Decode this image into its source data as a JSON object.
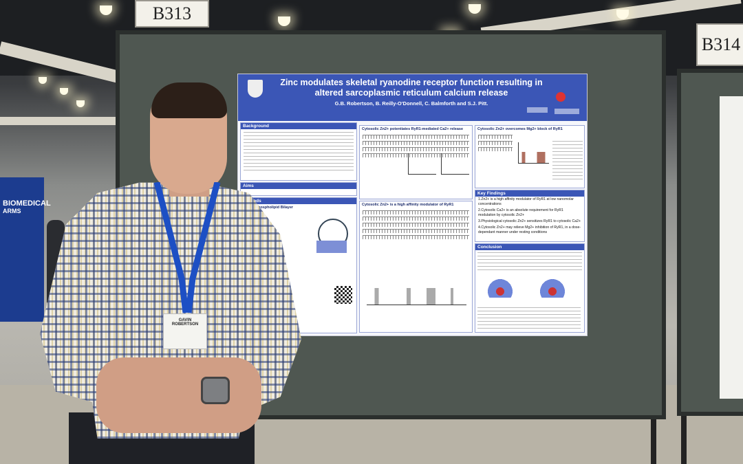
{
  "booth_signs": {
    "main": "B313",
    "right": "B314"
  },
  "banner": {
    "line1": "BIOMEDICAL",
    "line2": "ARMS"
  },
  "poster": {
    "title": "Zinc modulates skeletal ryanodine receptor function resulting in altered sarcoplasmic reticulum calcium release",
    "authors": "G.B. Robertson, B. Reilly-O'Donnell, C. Balmforth and S.J. Pitt.",
    "sections": {
      "background": "Background",
      "aims": "Aims",
      "methods": "Methods",
      "bilayer": "Planar Phospholipid Bilayer",
      "panel1_title": "Cytosolic Zn2+ potentiates RyR1-mediated Ca2+ release",
      "panel2_title": "Cytosolic Zn2+ overcomes Mg2+ block of RyR1",
      "panel3_title": "Cytosolic Zn2+ is a high affinity modulator of RyR1",
      "key_findings": "Key Findings",
      "conclusion": "Conclusion"
    },
    "key_findings": [
      "1.Zn2+ is a high affinity modulator of RyR1 at low nanomolar concentrations",
      "2.Cytosolic Ca2+ is an absolute requirement for RyR1 modulation by cytosolic Zn2+",
      "3.Physiological cytosolic Zn2+ sensitizes RyR1 to cytosolic Ca2+",
      "4.Cytosolic Zn2+ may relieve Mg2+ inhibition of RyR1, in a dose-dependant manner under resting conditions"
    ]
  },
  "badge": {
    "first": "GAVIN",
    "last": "ROBERTSON"
  },
  "colors": {
    "poster_blue": "#3b56b6",
    "board": "#4f5751",
    "lanyard": "#1d4fc4"
  }
}
